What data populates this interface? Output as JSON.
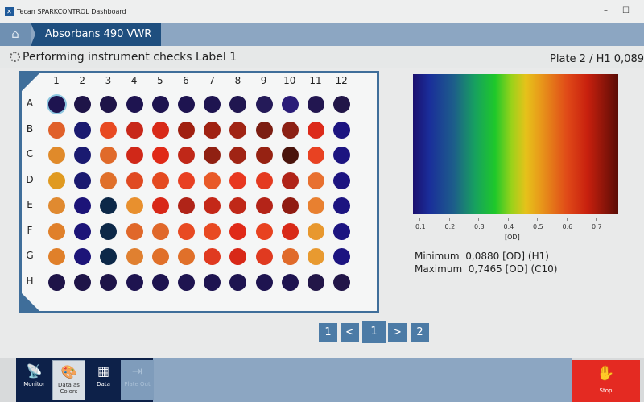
{
  "window": {
    "title": "Tecan SPARKCONTROL Dashboard",
    "app_icon": "tecan-x-icon"
  },
  "header": {
    "home_icon": "home-icon",
    "tab": "Absorbans 490 VWR"
  },
  "status": {
    "text": "Performing instrument checks Label 1",
    "plate_info": "Plate 2 / H1 0,089"
  },
  "plate": {
    "columns": [
      "1",
      "2",
      "3",
      "4",
      "5",
      "6",
      "7",
      "8",
      "9",
      "10",
      "11",
      "12"
    ],
    "rows": [
      "A",
      "B",
      "C",
      "D",
      "E",
      "F",
      "G",
      "H"
    ],
    "selected_well": "A1",
    "well_colors": [
      [
        "#1e1450",
        "#1e1448",
        "#1e1448",
        "#1e1450",
        "#1e1450",
        "#1e1450",
        "#1e1450",
        "#201650",
        "#241a58",
        "#2a1c78",
        "#221650",
        "#221648"
      ],
      [
        "#e0602a",
        "#1a1a70",
        "#e84a22",
        "#c8281a",
        "#d82a18",
        "#a02010",
        "#a02212",
        "#a02414",
        "#7c1e12",
        "#8c2014",
        "#dc2a1a",
        "#1c1480"
      ],
      [
        "#e08a2a",
        "#1a1a70",
        "#e06a2a",
        "#d02818",
        "#e02a18",
        "#c02818",
        "#902012",
        "#a02414",
        "#962212",
        "#4a140c",
        "#e84222",
        "#1c1480"
      ],
      [
        "#e09a20",
        "#1a1a70",
        "#e0702a",
        "#e04a22",
        "#e44a20",
        "#e84022",
        "#e85a28",
        "#e83820",
        "#e43a20",
        "#b02418",
        "#e87030",
        "#1c1480"
      ],
      [
        "#e08a30",
        "#1c1478",
        "#0c2848",
        "#e8902e",
        "#d82818",
        "#b02418",
        "#c42818",
        "#c02818",
        "#b42418",
        "#901c12",
        "#e88030",
        "#1c1480"
      ],
      [
        "#e0802a",
        "#1c1478",
        "#0c2848",
        "#e0682a",
        "#e0682a",
        "#e84a22",
        "#e84a22",
        "#e02a18",
        "#e84220",
        "#d82a18",
        "#e8982e",
        "#1c1480"
      ],
      [
        "#e0802a",
        "#1c1478",
        "#0c2848",
        "#e08030",
        "#e0702a",
        "#e0702a",
        "#e03a20",
        "#d82818",
        "#e03a20",
        "#e06a2a",
        "#e89a30",
        "#1c1480"
      ],
      [
        "#1e1448",
        "#1e1448",
        "#1e1448",
        "#1e1450",
        "#1e1450",
        "#1e1450",
        "#1e1450",
        "#1e1450",
        "#1e1450",
        "#1e1450",
        "#221648",
        "#221648"
      ]
    ]
  },
  "colorbar": {
    "ticks": [
      "0.1",
      "0.2",
      "0.3",
      "0.4",
      "0.5",
      "0.6",
      "0.7"
    ],
    "unit": "[OD]",
    "range": [
      0.088,
      0.7465
    ]
  },
  "stats": {
    "minimum_label": "Minimum",
    "minimum_value": "0,0880 [OD] (H1)",
    "maximum_label": "Maximum",
    "maximum_value": "0,7465 [OD] (C10)"
  },
  "pagination": {
    "first": "1",
    "prev": "<",
    "current": "1",
    "next": ">",
    "last": "2"
  },
  "toolbar": {
    "monitor": "Monitor",
    "data_as_colors": "Data as Colors",
    "data": "Data",
    "plate_out": "Plate Out",
    "stop": "Stop"
  }
}
